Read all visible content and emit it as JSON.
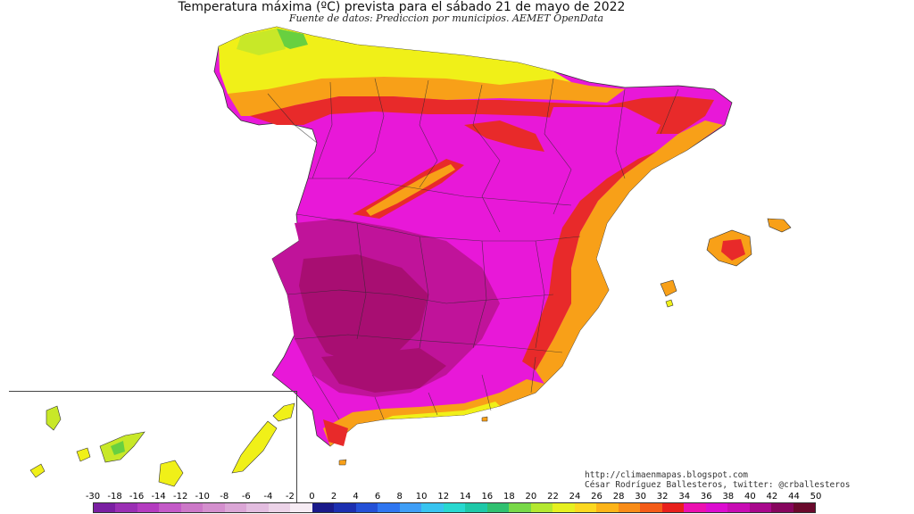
{
  "header": {
    "title": "Temperatura máxima (ºC) prevista para el sábado 21 de mayo de 2022",
    "subtitle": "Fuente de datos: Prediccion por municipios. AEMET OpenData"
  },
  "credits": {
    "url": "http://climaenmapas.blogspot.com",
    "author": "César Rodríguez Ballesteros, twitter: @crballesteros"
  },
  "legend": {
    "labels": [
      "-30",
      "-18",
      "-16",
      "-14",
      "-12",
      "-10",
      "-8",
      "-6",
      "-4",
      "-2",
      "0",
      "2",
      "4",
      "6",
      "8",
      "10",
      "12",
      "14",
      "16",
      "18",
      "20",
      "22",
      "24",
      "26",
      "28",
      "30",
      "32",
      "34",
      "36",
      "38",
      "40",
      "42",
      "44",
      "50"
    ],
    "colors": [
      "#7a1fa2",
      "#9a2fb4",
      "#b43cc0",
      "#c45ac8",
      "#cc78c8",
      "#d48fce",
      "#dba6d6",
      "#e3bde0",
      "#ecd3e8",
      "#f6ecf4",
      "#1a1a8a",
      "#1c2fb0",
      "#2450d6",
      "#2f76f0",
      "#3f9ef6",
      "#38c4f0",
      "#28d8d0",
      "#1ec8a8",
      "#30c070",
      "#78d848",
      "#b4e830",
      "#e6f020",
      "#fcd820",
      "#fcb418",
      "#f88c18",
      "#f45c18",
      "#e8201c",
      "#ec10b0",
      "#dc0cd0",
      "#c80cb4",
      "#a8088c",
      "#86065e",
      "#6a0a2c"
    ],
    "map_palette": {
      "yellow": "#f0f018",
      "yellow_green": "#c8e828",
      "green": "#68d040",
      "orange": "#f8a018",
      "red": "#e82a2a",
      "magenta": "#e818d8",
      "deep_magenta": "#c0139a",
      "maroon": "#a80e72"
    }
  }
}
